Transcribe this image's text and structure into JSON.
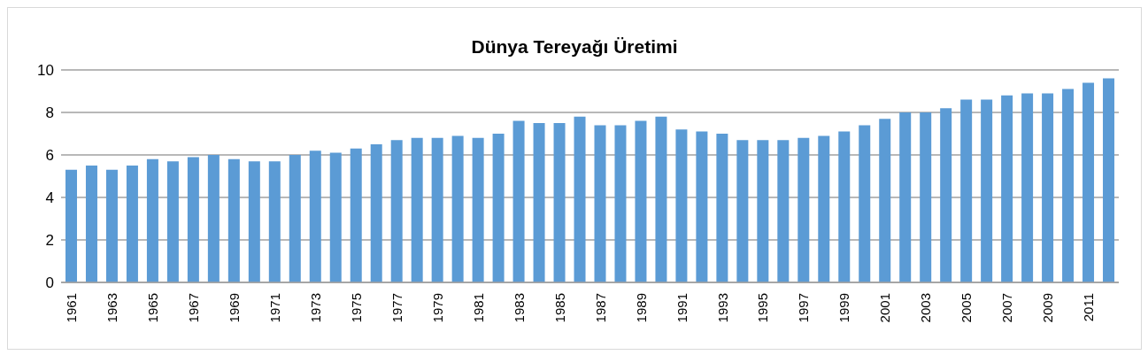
{
  "chart_data": {
    "type": "bar",
    "title": "Dünya Tereyağı Üretimi",
    "categories": [
      "1961",
      null,
      "1963",
      null,
      "1965",
      null,
      "1967",
      null,
      "1969",
      null,
      "1971",
      null,
      "1973",
      null,
      "1975",
      null,
      "1977",
      null,
      "1979",
      null,
      "1981",
      null,
      "1983",
      null,
      "1985",
      null,
      "1987",
      null,
      "1989",
      null,
      "1991",
      null,
      "1993",
      null,
      "1995",
      null,
      "1997",
      null,
      "1999",
      null,
      "2001",
      null,
      "2003",
      null,
      "2005",
      null,
      "2007",
      null,
      "2009",
      null,
      "2011",
      null
    ],
    "values": [
      5.3,
      5.5,
      5.3,
      5.5,
      5.8,
      5.7,
      5.9,
      6.0,
      5.8,
      5.7,
      5.7,
      6.0,
      6.2,
      6.1,
      6.3,
      6.5,
      6.7,
      6.8,
      6.8,
      6.9,
      6.8,
      7.0,
      7.6,
      7.5,
      7.5,
      7.8,
      7.4,
      7.4,
      7.6,
      7.8,
      7.2,
      7.1,
      7.0,
      6.7,
      6.7,
      6.7,
      6.8,
      6.9,
      7.1,
      7.4,
      7.7,
      8.0,
      8.0,
      8.2,
      8.6,
      8.6,
      8.8,
      8.9,
      8.9,
      9.1,
      9.4,
      9.6
    ],
    "color": "#5b9bd5",
    "ylim": [
      0,
      10
    ],
    "yticks": [
      0,
      2,
      4,
      6,
      8,
      10
    ],
    "grid": "y",
    "legend": false
  }
}
